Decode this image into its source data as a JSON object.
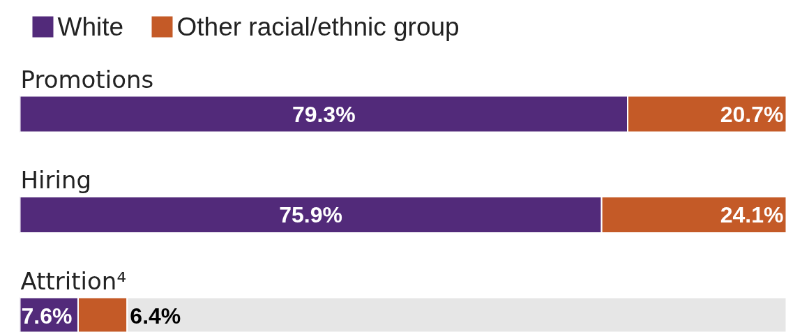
{
  "chart_data": {
    "type": "bar",
    "orientation": "horizontal",
    "stacked": true,
    "categories": [
      "Promotions",
      "Hiring",
      "Attrition⁴"
    ],
    "legend": "top left",
    "tick_labels": false,
    "xlim": [
      0,
      100
    ],
    "series": [
      {
        "name": "White",
        "color": "#522a7a",
        "values": [
          79.3,
          75.9,
          7.6
        ],
        "value_labels": [
          "79.3%",
          "75.9%",
          "7.6%"
        ]
      },
      {
        "name": "Other racial/ethnic group",
        "color": "#c45a27",
        "values": [
          20.7,
          24.1,
          6.4
        ],
        "value_labels": [
          "20.7%",
          "24.1%",
          "6.4%"
        ]
      },
      {
        "color": "#e6e6e6",
        "values": [
          null,
          null,
          86.0
        ]
      }
    ]
  }
}
